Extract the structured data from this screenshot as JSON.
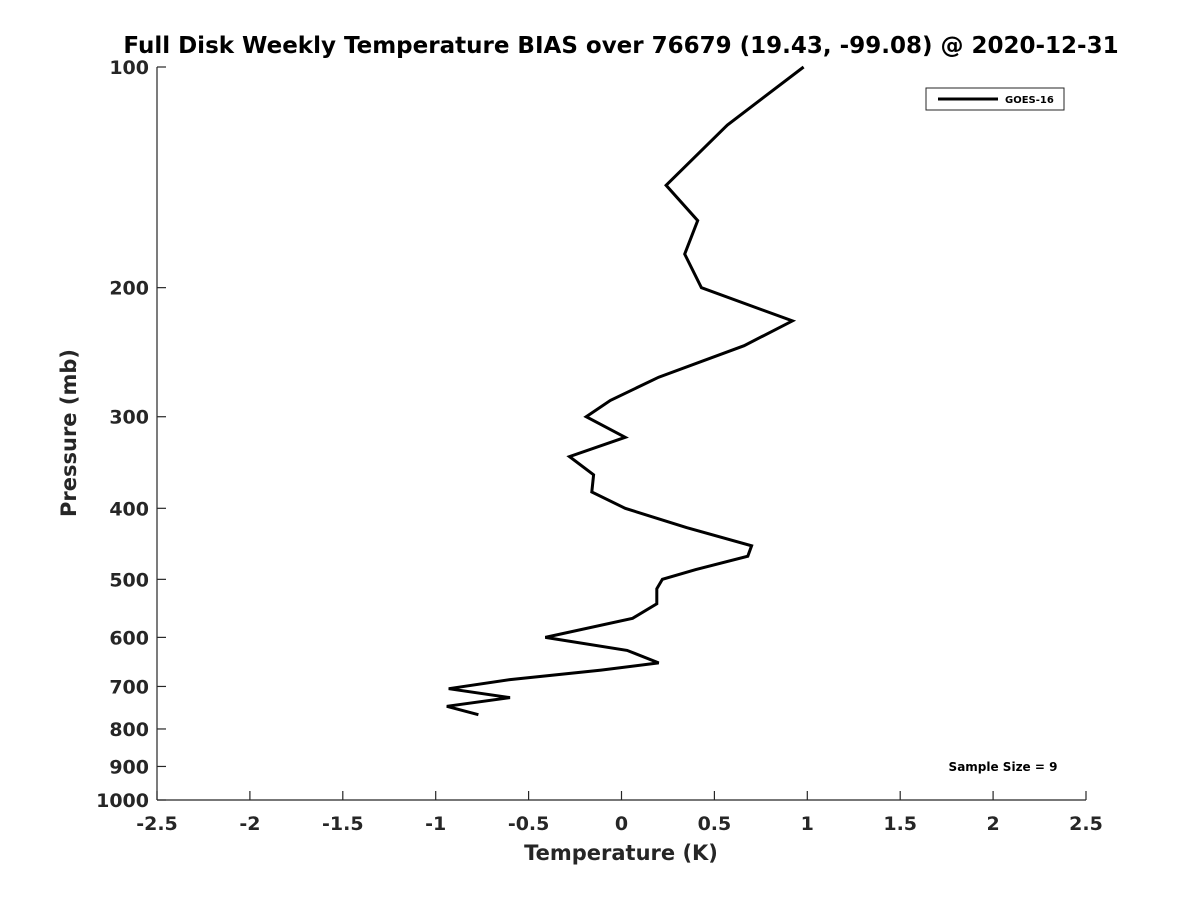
{
  "chart_data": {
    "type": "line",
    "title": "Full Disk Weekly Temperature BIAS over 76679 (19.43, -99.08) @ 2020-12-31",
    "xlabel": "Temperature (K)",
    "ylabel": "Pressure (mb)",
    "xlim": [
      -2.5,
      2.5
    ],
    "ylim": [
      100,
      1000
    ],
    "y_scale": "log",
    "y_reversed": true,
    "x_ticks": [
      -2.5,
      -2,
      -1.5,
      -1,
      -0.5,
      0,
      0.5,
      1,
      1.5,
      2,
      2.5
    ],
    "x_tick_labels": [
      "-2.5",
      "-2",
      "-1.5",
      "-1",
      "-0.5",
      "0",
      "0.5",
      "1",
      "1.5",
      "2",
      "2.5"
    ],
    "y_ticks": [
      100,
      200,
      300,
      400,
      500,
      600,
      700,
      800,
      900,
      1000
    ],
    "y_tick_labels": [
      "100",
      "200",
      "300",
      "400",
      "500",
      "600",
      "700",
      "800",
      "900",
      "1000"
    ],
    "grid": false,
    "legend_position": "top-right",
    "series": [
      {
        "name": "GOES-16",
        "color": "#000000",
        "points": [
          {
            "x": 0.98,
            "y": 100
          },
          {
            "x": 0.57,
            "y": 120
          },
          {
            "x": 0.24,
            "y": 145
          },
          {
            "x": 0.41,
            "y": 162
          },
          {
            "x": 0.34,
            "y": 180
          },
          {
            "x": 0.43,
            "y": 200
          },
          {
            "x": 0.92,
            "y": 222
          },
          {
            "x": 0.66,
            "y": 240
          },
          {
            "x": 0.2,
            "y": 265
          },
          {
            "x": -0.06,
            "y": 285
          },
          {
            "x": -0.19,
            "y": 300
          },
          {
            "x": 0.02,
            "y": 320
          },
          {
            "x": -0.28,
            "y": 340
          },
          {
            "x": -0.15,
            "y": 360
          },
          {
            "x": -0.16,
            "y": 380
          },
          {
            "x": 0.02,
            "y": 400
          },
          {
            "x": 0.35,
            "y": 425
          },
          {
            "x": 0.7,
            "y": 450
          },
          {
            "x": 0.68,
            "y": 465
          },
          {
            "x": 0.4,
            "y": 485
          },
          {
            "x": 0.22,
            "y": 500
          },
          {
            "x": 0.19,
            "y": 515
          },
          {
            "x": 0.19,
            "y": 540
          },
          {
            "x": 0.06,
            "y": 565
          },
          {
            "x": -0.41,
            "y": 600
          },
          {
            "x": 0.03,
            "y": 625
          },
          {
            "x": 0.2,
            "y": 650
          },
          {
            "x": -0.11,
            "y": 665
          },
          {
            "x": -0.6,
            "y": 685
          },
          {
            "x": -0.93,
            "y": 705
          },
          {
            "x": -0.6,
            "y": 725
          },
          {
            "x": -0.94,
            "y": 745
          },
          {
            "x": -0.77,
            "y": 765
          }
        ]
      }
    ],
    "annotations": [
      {
        "text": "Sample Size = 9",
        "position": "bottom-right"
      }
    ]
  }
}
